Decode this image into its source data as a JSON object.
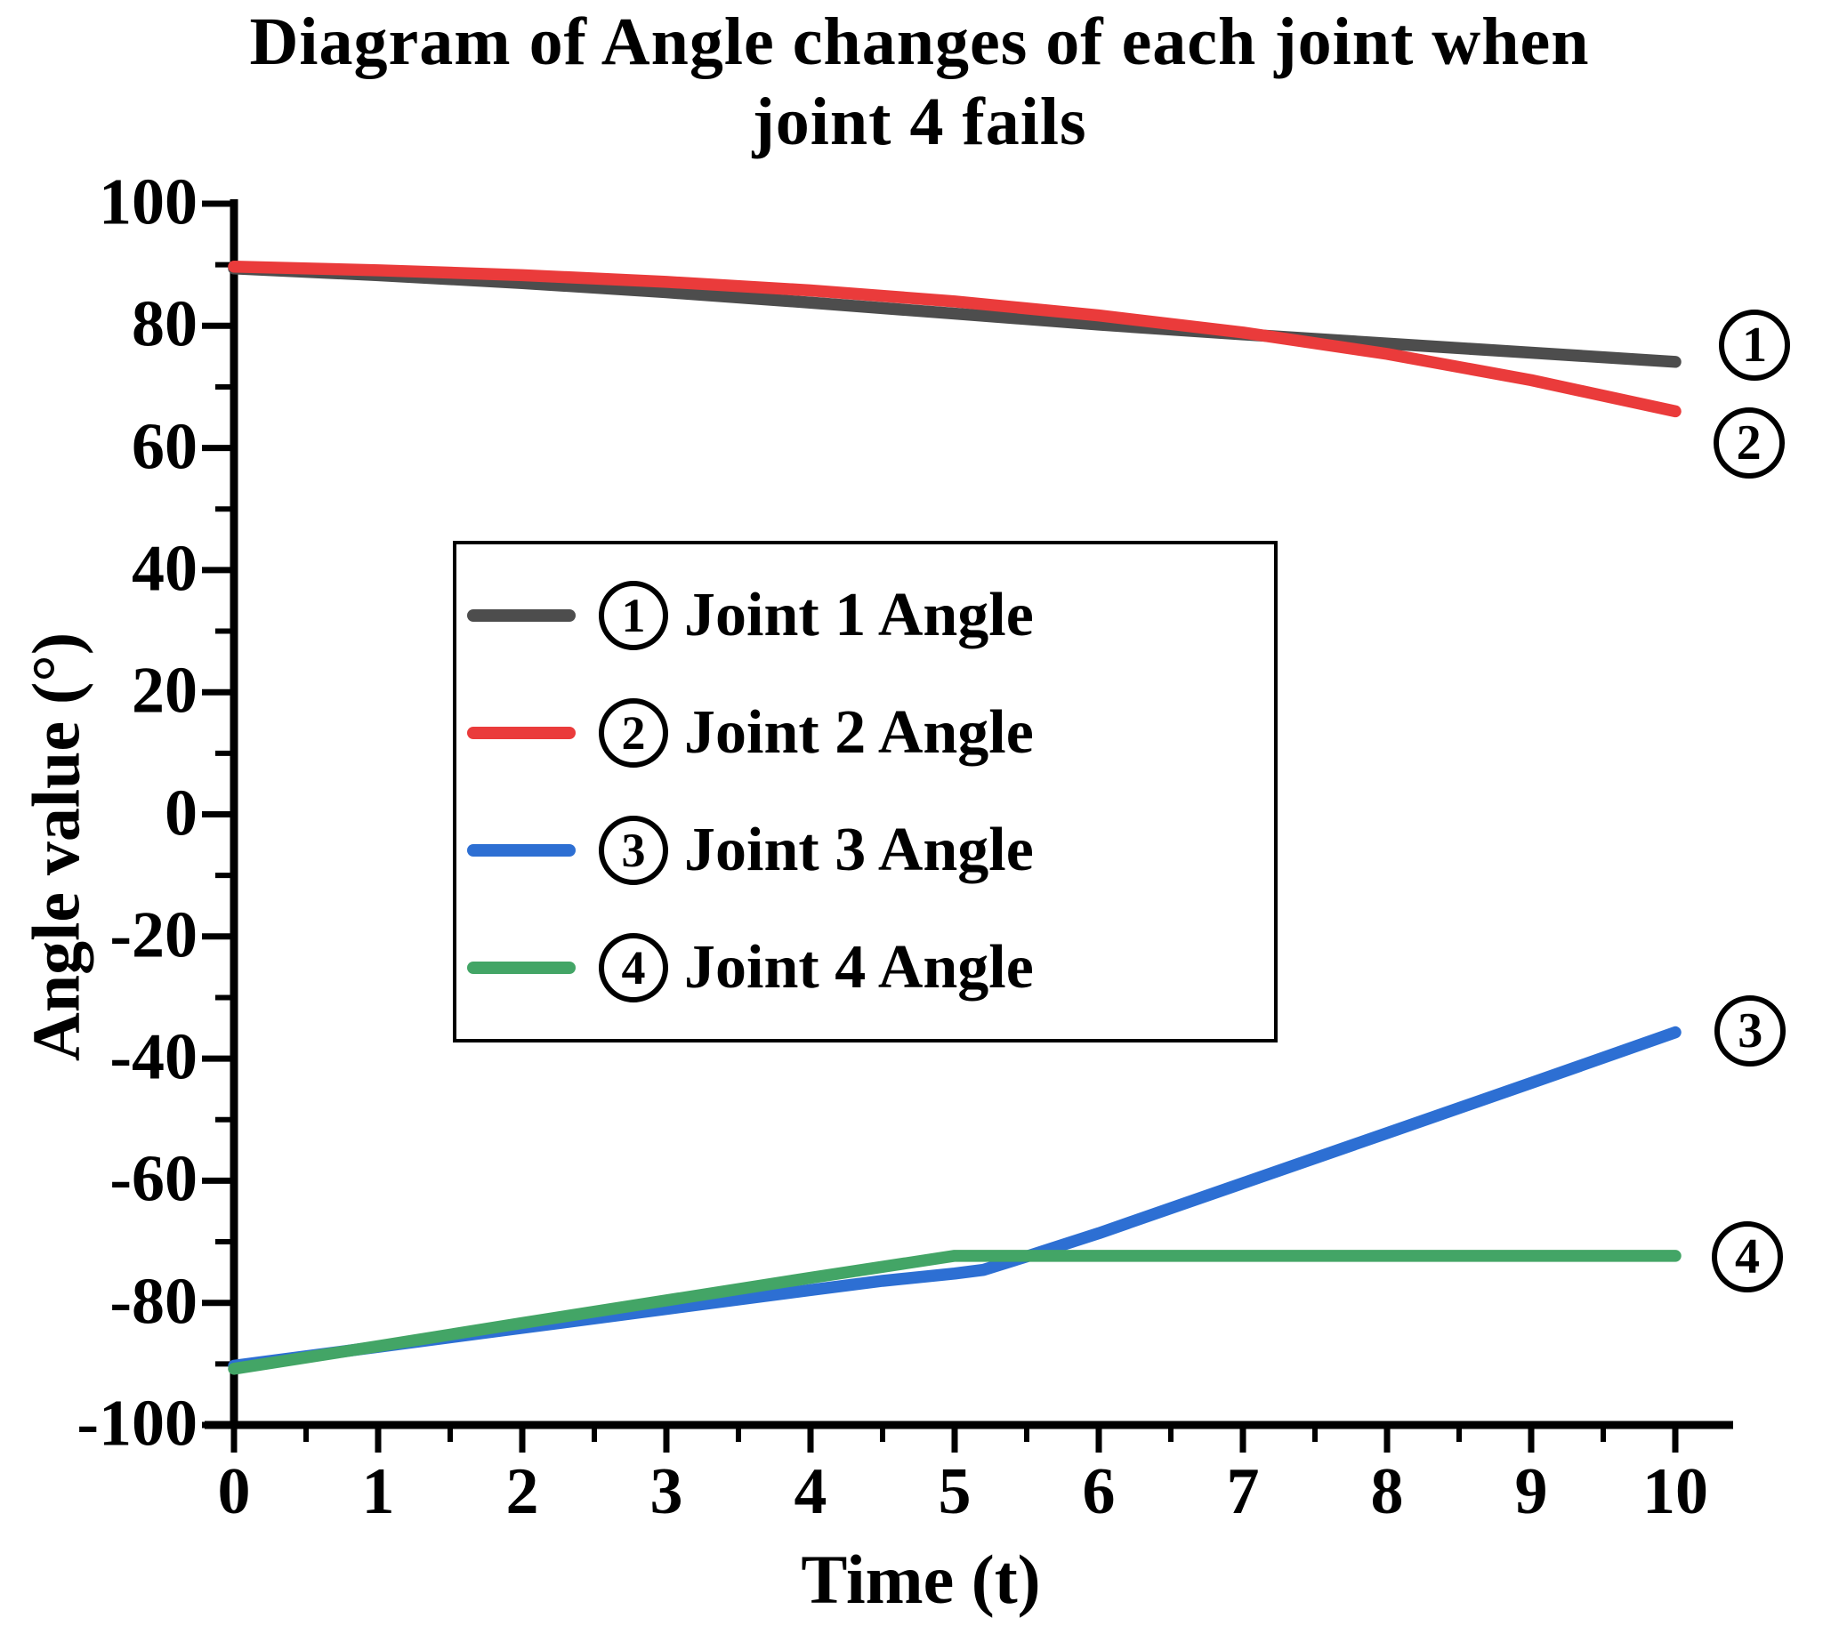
{
  "figure": {
    "title_line1": "Diagram of Angle changes of each joint when",
    "title_line2": "joint 4 fails"
  },
  "axes": {
    "x": {
      "title": "Time (t)",
      "range": [
        0,
        10
      ],
      "tick_values": [
        0,
        1,
        2,
        3,
        4,
        5,
        6,
        7,
        8,
        9,
        10
      ],
      "tick_labels": [
        "0",
        "1",
        "2",
        "3",
        "4",
        "5",
        "6",
        "7",
        "8",
        "9",
        "10"
      ]
    },
    "y": {
      "title": "Angle value (°)",
      "range": [
        -100,
        100
      ],
      "tick_values": [
        100,
        80,
        60,
        40,
        20,
        0,
        -20,
        -40,
        -60,
        -80,
        -100
      ],
      "tick_labels": [
        "100",
        "80",
        "60",
        "40",
        "20",
        "0",
        "-20",
        "-40",
        "-60",
        "-80",
        "-100"
      ]
    }
  },
  "legend": {
    "items": [
      {
        "symbol": "1",
        "label": "Joint 1 Angle"
      },
      {
        "symbol": "2",
        "label": "Joint 2 Angle"
      },
      {
        "symbol": "3",
        "label": "Joint 3 Angle"
      },
      {
        "symbol": "4",
        "label": "Joint 4 Angle"
      }
    ]
  },
  "annotations": [
    {
      "symbol": "1",
      "t": 10.55,
      "v": 76.8
    },
    {
      "symbol": "2",
      "t": 10.51,
      "v": 60.8
    },
    {
      "symbol": "3",
      "t": 10.52,
      "v": -35.5
    },
    {
      "symbol": "4",
      "t": 10.5,
      "v": -72.4
    }
  ],
  "chart_data": {
    "type": "line",
    "title": "Diagram of Angle changes of each joint when joint 4 fails",
    "xlabel": "Time (t)",
    "ylabel": "Angle value (°)",
    "xlim": [
      0,
      10
    ],
    "ylim": [
      -100,
      100
    ],
    "x_ticks": [
      0,
      1,
      2,
      3,
      4,
      5,
      6,
      7,
      8,
      9,
      10
    ],
    "y_ticks": [
      100,
      80,
      60,
      40,
      20,
      0,
      -20,
      -40,
      -60,
      -80,
      -100
    ],
    "grid": false,
    "legend_position": "center inside plot",
    "series": [
      {
        "name": "① Joint 1 Angle",
        "color": "#4d4d4d",
        "x": [
          0,
          1,
          2,
          3,
          4,
          5,
          6,
          7,
          8,
          9,
          10
        ],
        "y": [
          89.4,
          88.3,
          87.0,
          85.5,
          83.8,
          82.0,
          80.2,
          78.6,
          77.1,
          75.6,
          74.1
        ]
      },
      {
        "name": "② Joint 2 Angle",
        "color": "#ea3b3b",
        "x": [
          0,
          1,
          2,
          3,
          4,
          5,
          6,
          7,
          8,
          9,
          10
        ],
        "y": [
          89.7,
          89.1,
          88.3,
          87.2,
          85.8,
          84.0,
          81.7,
          78.9,
          75.4,
          71.1,
          66.0
        ]
      },
      {
        "name": "③ Joint 3 Angle",
        "color": "#2d6fd3",
        "x": [
          0,
          1,
          2,
          3,
          4,
          4.5,
          5,
          5.2,
          5.5,
          6,
          7,
          8,
          9,
          10
        ],
        "y": [
          -90.3,
          -87.2,
          -84.1,
          -81.0,
          -77.9,
          -76.4,
          -75.2,
          -74.6,
          -72.4,
          -68.6,
          -60.4,
          -52.2,
          -44.0,
          -35.7
        ]
      },
      {
        "name": "④ Joint 4 Angle",
        "color": "#43a566",
        "x": [
          0,
          1,
          2,
          3,
          4,
          5,
          6,
          7,
          8,
          9,
          10
        ],
        "y": [
          -90.8,
          -87.1,
          -83.3,
          -79.6,
          -75.9,
          -72.3,
          -72.3,
          -72.3,
          -72.3,
          -72.3,
          -72.3
        ]
      }
    ]
  }
}
